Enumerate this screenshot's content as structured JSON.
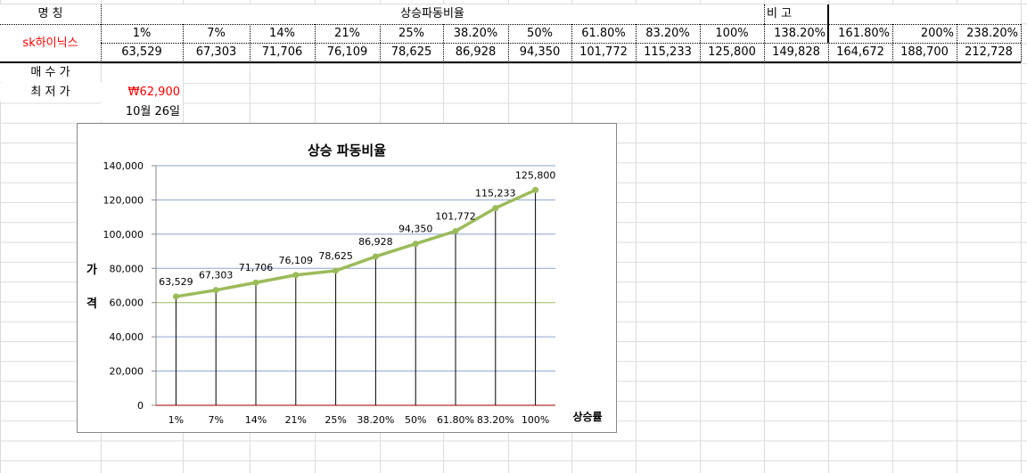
{
  "sheet": {
    "name_header": "명        칭",
    "ratio_header": "상승파동비율",
    "note_header": "비      고",
    "stock_name": "sk하이닉스",
    "percents": [
      "1%",
      "7%",
      "14%",
      "21%",
      "25%",
      "38.20%",
      "50%",
      "61.80%",
      "83.20%",
      "100%",
      "138.20%",
      "161.80%",
      "200%",
      "238.20%"
    ],
    "prices": [
      "63,529",
      "67,303",
      "71,706",
      "76,109",
      "78,625",
      "86,928",
      "94,350",
      "101,772",
      "115,233",
      "125,800",
      "149,828",
      "164,672",
      "188,700",
      "212,728"
    ],
    "buy_label": "매 수 가",
    "low_label": "최 저 가",
    "low_value": "₩62,900",
    "date": "10월 26일"
  },
  "chart_data": {
    "type": "line",
    "title": "상승 파동비율",
    "xlabel": "상승률",
    "ylabel": "가 격",
    "categories": [
      "1%",
      "7%",
      "14%",
      "21%",
      "25%",
      "38.20%",
      "50%",
      "61.80%",
      "83.20%",
      "100%"
    ],
    "values": [
      63529,
      67303,
      71706,
      76109,
      78625,
      86928,
      94350,
      101772,
      115233,
      125800
    ],
    "data_labels": [
      "63,529",
      "67,303",
      "71,706",
      "76,109",
      "78,625",
      "86,928",
      "94,350",
      "101,772",
      "115,233",
      "125,800"
    ],
    "yticks": [
      "0",
      "20,000",
      "40,000",
      "60,000",
      "80,000",
      "100,000",
      "120,000",
      "140,000"
    ],
    "ylim": [
      0,
      140000
    ],
    "grid": true,
    "drop_lines": true,
    "colors": {
      "line": "#9bbb59",
      "grid": "#8ea4d2",
      "baseline": "#c0504d"
    }
  }
}
